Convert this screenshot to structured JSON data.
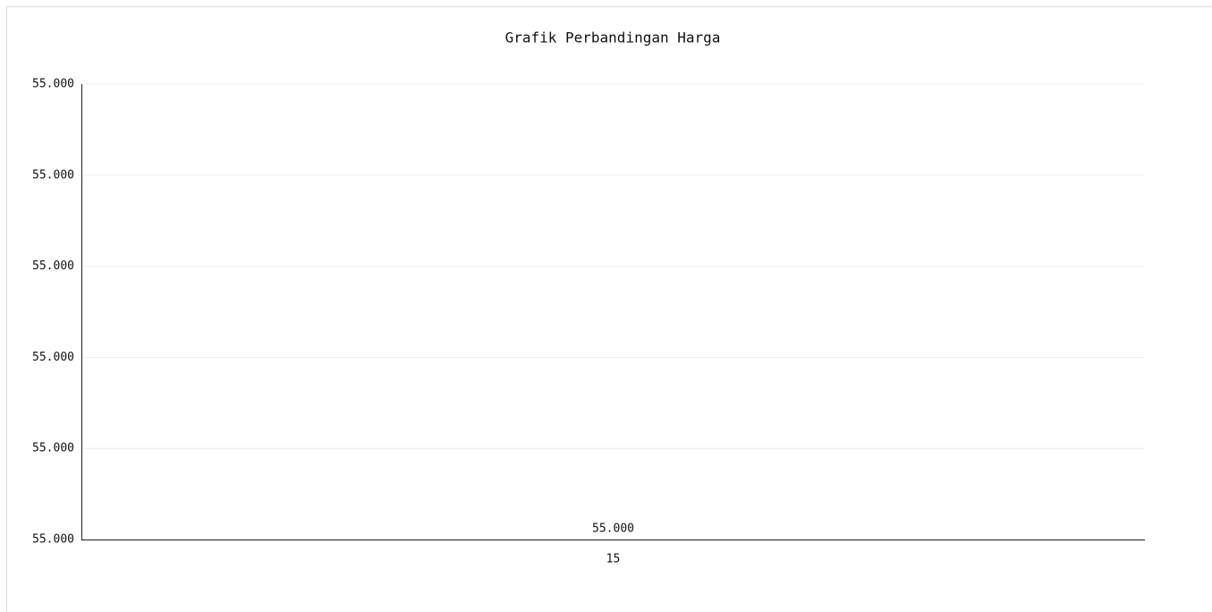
{
  "chart_data": {
    "type": "bar",
    "title": "Grafik Perbandingan Harga",
    "categories": [
      "15"
    ],
    "values": [
      55000
    ],
    "value_labels": [
      "55.000"
    ],
    "color": "#8ed4f2",
    "ylim": [
      55000,
      55000.4
    ],
    "yticks": [
      {
        "value": 55000,
        "label": "55.000"
      },
      {
        "value": 55000.08,
        "label": "55.000"
      },
      {
        "value": 55000.16,
        "label": "55.000"
      },
      {
        "value": 55000.24,
        "label": "55.000"
      },
      {
        "value": 55000.32,
        "label": "55.000"
      },
      {
        "value": 55000.4,
        "label": "55.000"
      }
    ],
    "grid": true
  }
}
